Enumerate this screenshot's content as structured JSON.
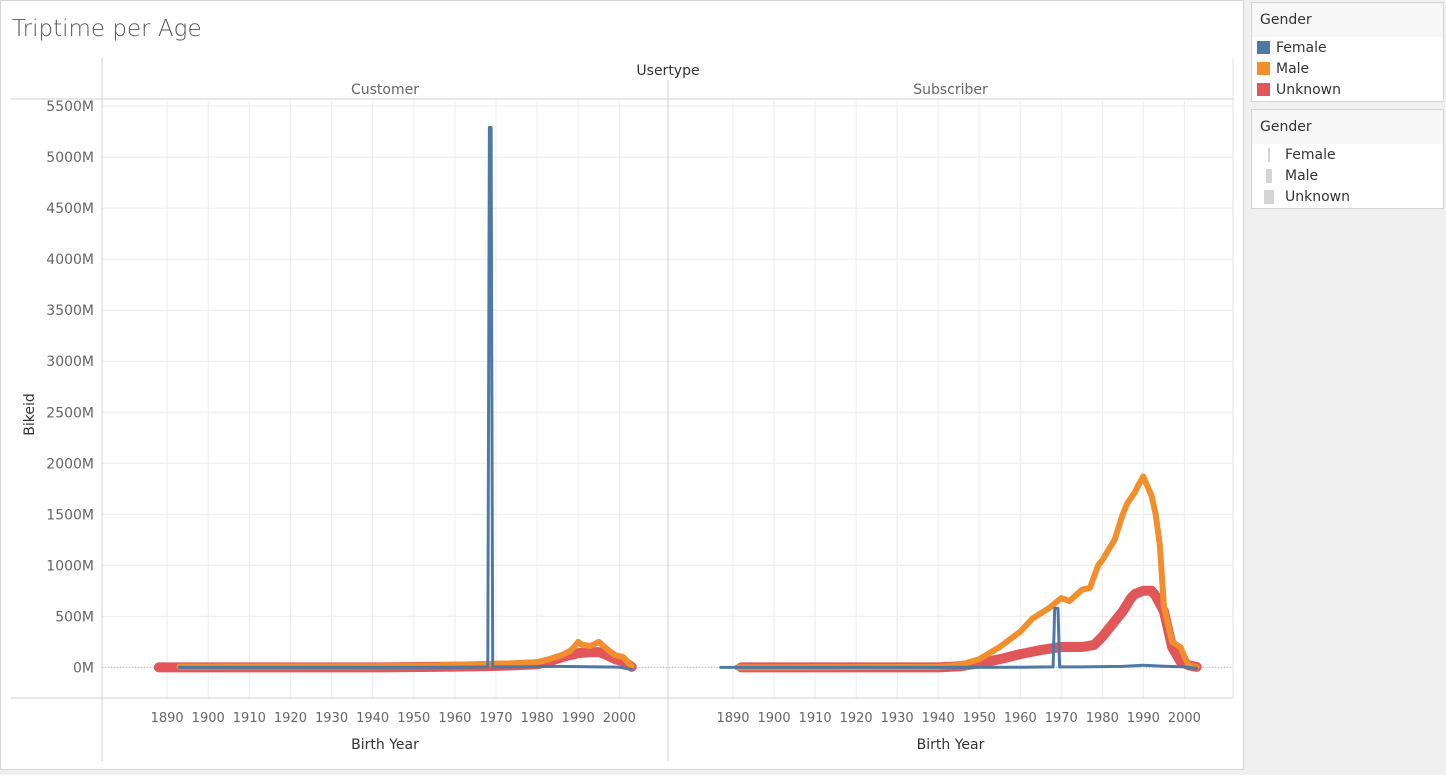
{
  "title": "Triptime per Age",
  "legend_color": {
    "title": "Gender",
    "items": [
      {
        "label": "Female",
        "color": "#4e79a7"
      },
      {
        "label": "Male",
        "color": "#f28e2b"
      },
      {
        "label": "Unknown",
        "color": "#e15759"
      }
    ]
  },
  "legend_size": {
    "title": "Gender",
    "items": [
      {
        "label": "Female",
        "level": 1
      },
      {
        "label": "Male",
        "level": 2
      },
      {
        "label": "Unknown",
        "level": 3
      }
    ]
  },
  "chart_data": {
    "type": "line",
    "column_header": "Usertype",
    "panels": [
      "Customer",
      "Subscriber"
    ],
    "xlabel": "Birth Year",
    "ylabel": "Bikeid",
    "xlim": [
      1880,
      2006
    ],
    "x_ticks": [
      1890,
      1900,
      1910,
      1920,
      1930,
      1940,
      1950,
      1960,
      1970,
      1980,
      1990,
      2000
    ],
    "ylim": [
      -300,
      5550
    ],
    "y_ticks": [
      0,
      500,
      1000,
      1500,
      2000,
      2500,
      3000,
      3500,
      4000,
      4500,
      5000,
      5500
    ],
    "y_tick_labels": [
      "0M",
      "500M",
      "1000M",
      "1500M",
      "2000M",
      "2500M",
      "3000M",
      "3500M",
      "4000M",
      "4500M",
      "5000M",
      "5500M"
    ],
    "grid": true,
    "series": {
      "Customer": [
        {
          "name": "Unknown",
          "width": 10,
          "x": [
            1888,
            1900,
            1920,
            1940,
            1955,
            1965,
            1970,
            1975,
            1980,
            1983,
            1986,
            1988,
            1990,
            1993,
            1995,
            1997,
            1999,
            2001,
            2003
          ],
          "y": [
            0,
            0,
            0,
            0,
            5,
            10,
            15,
            20,
            30,
            60,
            100,
            120,
            140,
            150,
            150,
            120,
            80,
            60,
            5
          ]
        },
        {
          "name": "Male",
          "width": 6,
          "x": [
            1893,
            1920,
            1940,
            1955,
            1960,
            1965,
            1970,
            1975,
            1980,
            1983,
            1986,
            1988,
            1989,
            1990,
            1991,
            1993,
            1995,
            1997,
            1999,
            2001,
            2003
          ],
          "y": [
            8,
            10,
            12,
            18,
            25,
            30,
            35,
            40,
            50,
            80,
            120,
            160,
            200,
            250,
            220,
            210,
            250,
            180,
            120,
            100,
            10
          ]
        },
        {
          "name": "Female",
          "width": 3,
          "x": [
            1893,
            1940,
            1960,
            1968,
            1968.4,
            1968.8,
            1969.2,
            1969.6,
            1970,
            1975,
            1980,
            1985,
            1990,
            1995,
            2000,
            2003
          ],
          "y": [
            0,
            0,
            2,
            5,
            5290,
            5290,
            5,
            5,
            5,
            5,
            8,
            10,
            8,
            5,
            3,
            -20
          ]
        }
      ],
      "Subscriber": [
        {
          "name": "Unknown",
          "width": 10,
          "x": [
            1892,
            1940,
            1945,
            1950,
            1955,
            1960,
            1965,
            1970,
            1975,
            1978,
            1980,
            1983,
            1985,
            1987,
            1988,
            1990,
            1992,
            1993,
            1995,
            1997,
            1999,
            2001,
            2003
          ],
          "y": [
            0,
            0,
            10,
            40,
            80,
            130,
            170,
            200,
            200,
            220,
            300,
            450,
            550,
            680,
            720,
            750,
            750,
            700,
            550,
            200,
            60,
            20,
            5
          ]
        },
        {
          "name": "Male",
          "width": 6,
          "x": [
            1891,
            1940,
            1945,
            1950,
            1955,
            1960,
            1963,
            1965,
            1967,
            1970,
            1972,
            1975,
            1977,
            1979,
            1980,
            1983,
            1985,
            1986,
            1988,
            1989,
            1990,
            1992,
            1993,
            1994,
            1995,
            1997,
            1999,
            2001,
            2003
          ],
          "y": [
            0,
            5,
            20,
            80,
            200,
            350,
            480,
            530,
            580,
            680,
            650,
            760,
            780,
            1000,
            1050,
            1250,
            1500,
            1600,
            1720,
            1800,
            1870,
            1680,
            1500,
            1200,
            600,
            250,
            200,
            20,
            5
          ]
        },
        {
          "name": "Female",
          "width": 3,
          "x": [
            1887,
            1940,
            1960,
            1968,
            1968.4,
            1969.2,
            1969.6,
            1975,
            1980,
            1985,
            1990,
            1995,
            2000,
            2003
          ],
          "y": [
            0,
            0,
            2,
            5,
            580,
            580,
            5,
            5,
            8,
            10,
            20,
            12,
            5,
            -10
          ]
        }
      ]
    }
  }
}
